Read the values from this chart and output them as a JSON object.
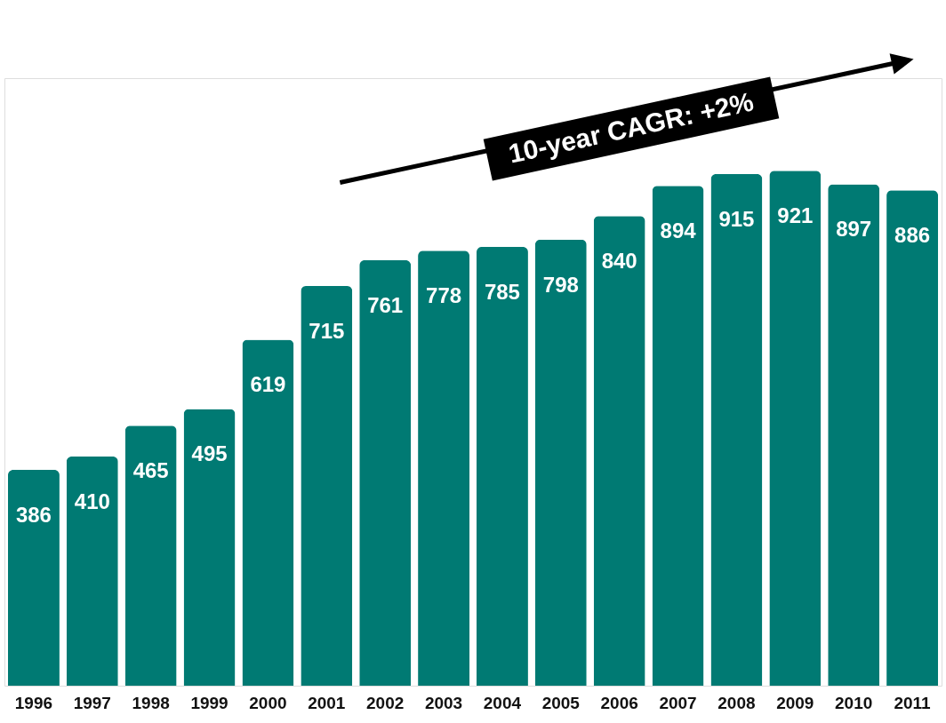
{
  "chart_data": {
    "type": "bar",
    "categories": [
      "1996",
      "1997",
      "1998",
      "1999",
      "2000",
      "2001",
      "2002",
      "2003",
      "2004",
      "2005",
      "2006",
      "2007",
      "2008",
      "2009",
      "2010",
      "2011"
    ],
    "values": [
      386,
      410,
      465,
      495,
      619,
      715,
      761,
      778,
      785,
      798,
      840,
      894,
      915,
      921,
      897,
      886
    ],
    "color": "#007a73",
    "data_labels": true,
    "annotations": [
      "10-year CAGR: +2%"
    ]
  }
}
